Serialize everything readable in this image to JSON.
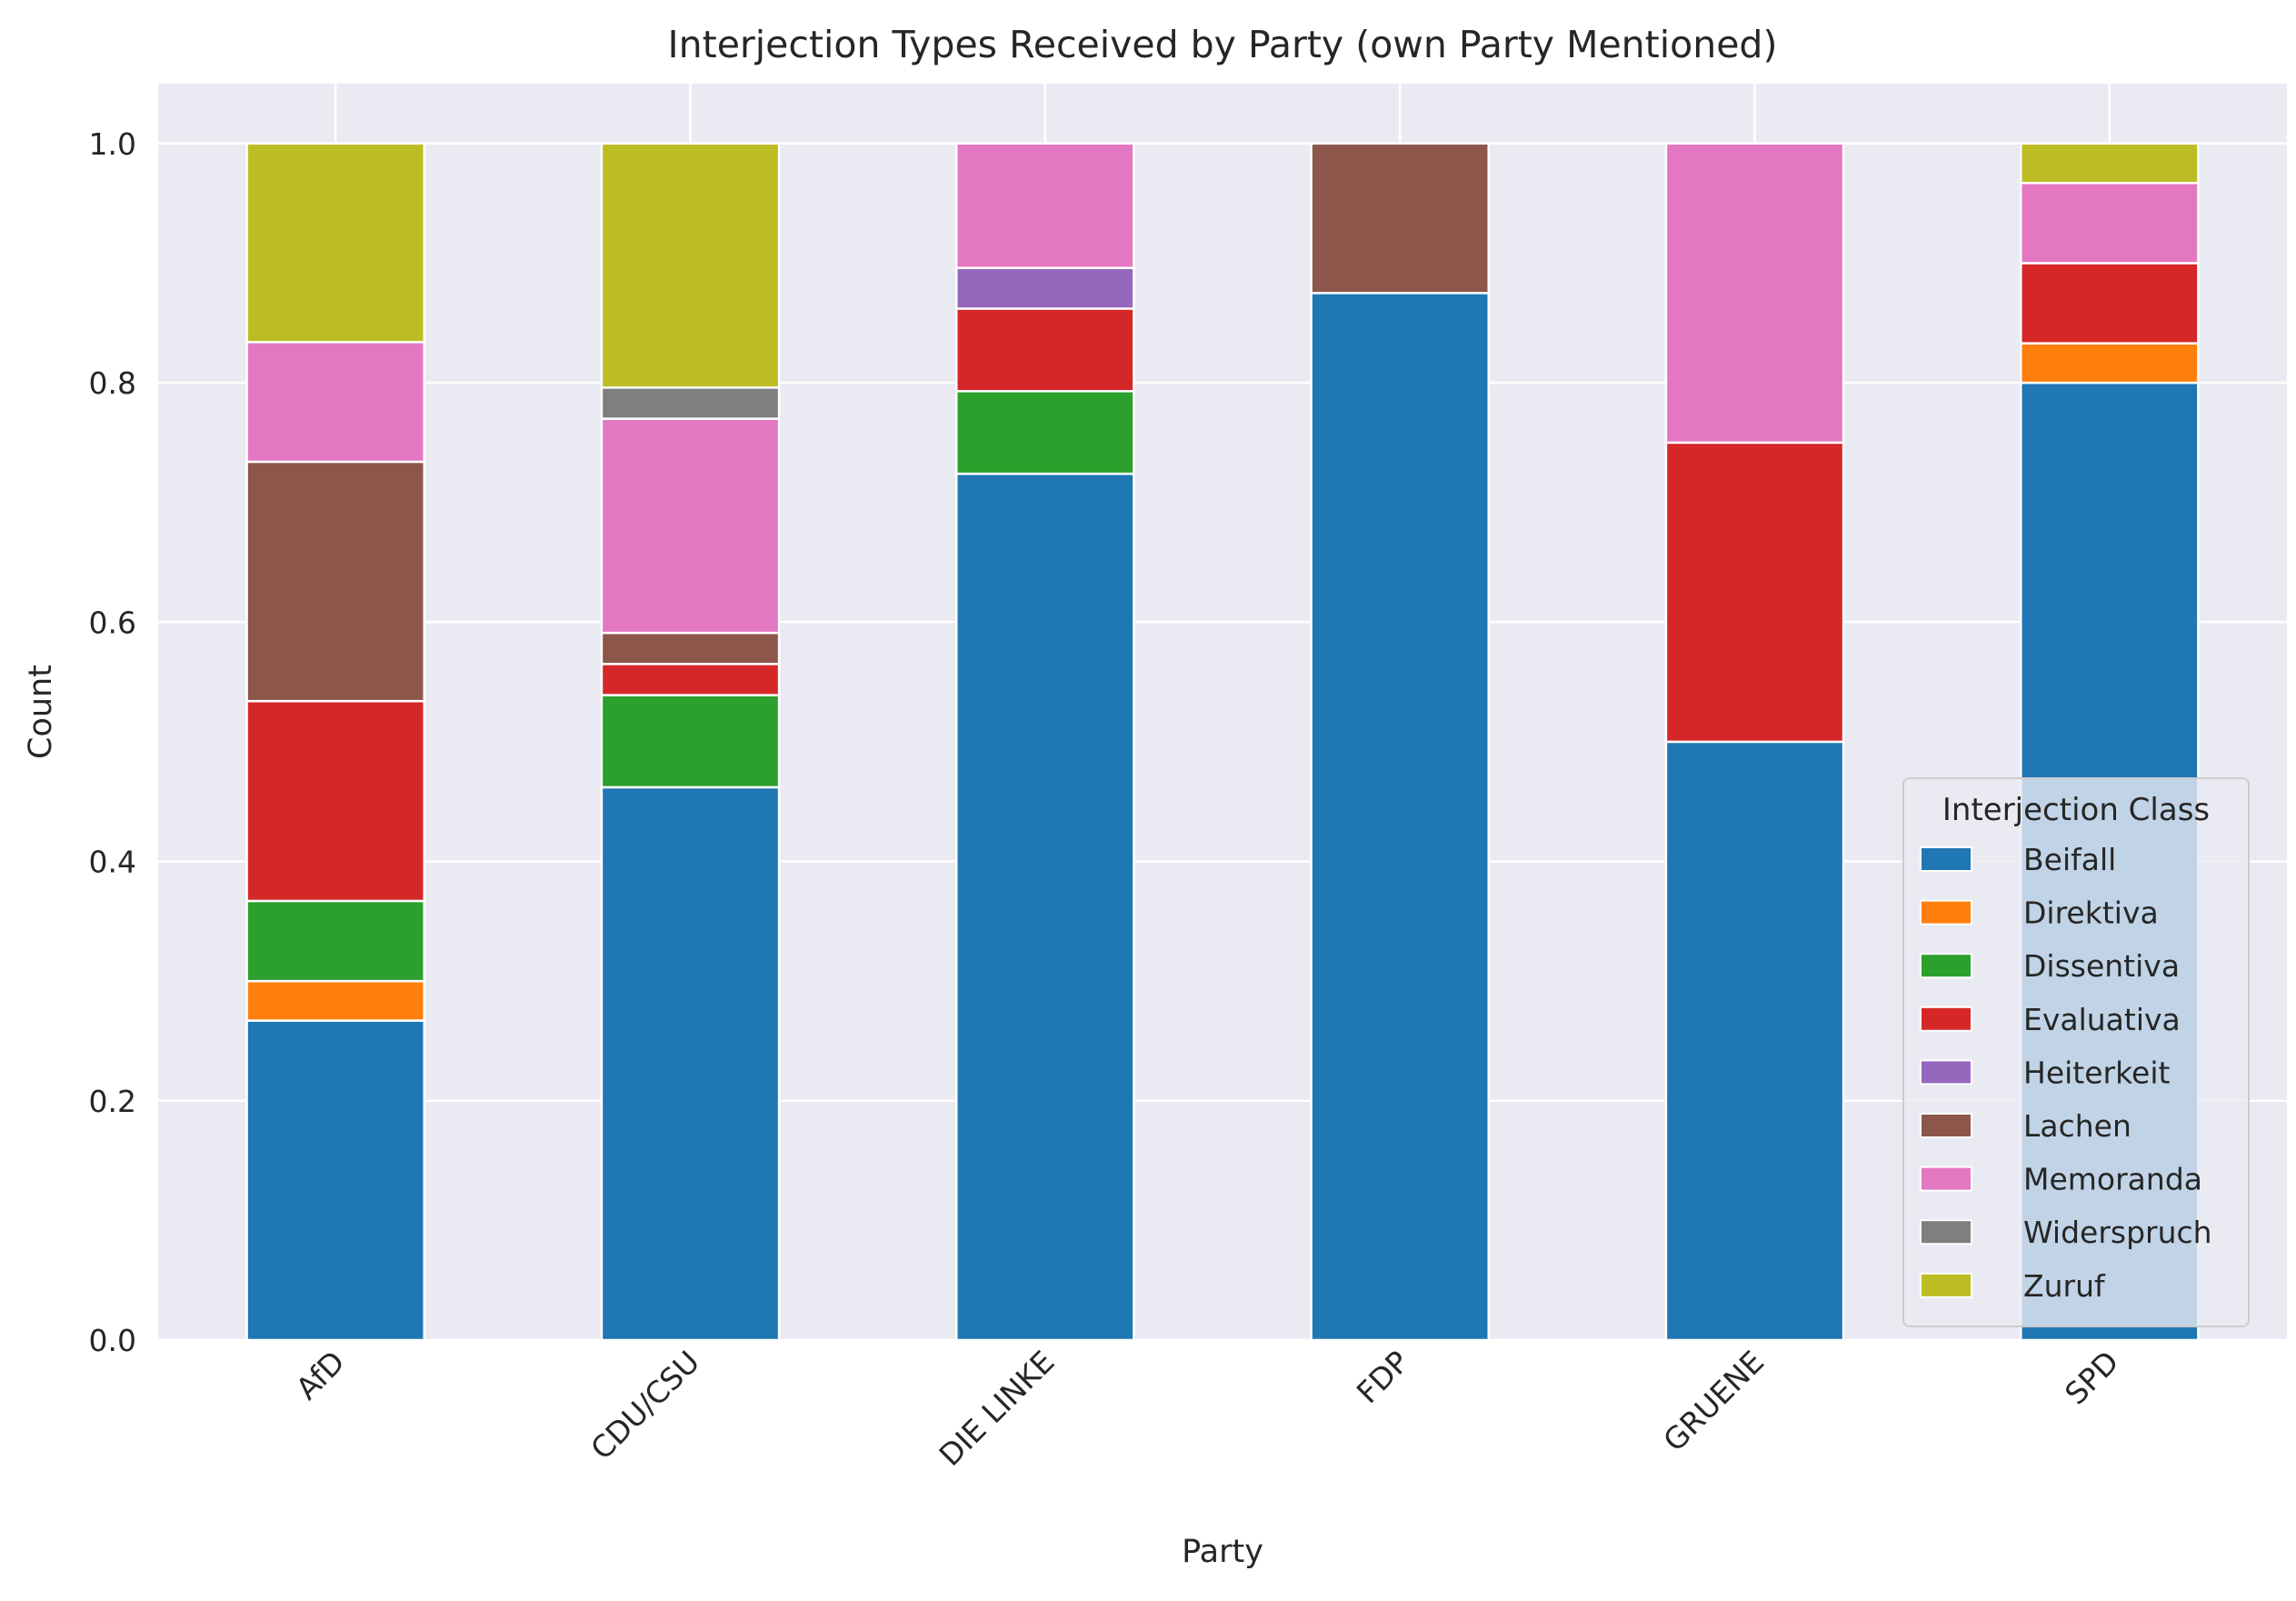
{
  "chart_data": {
    "type": "bar",
    "stacked": true,
    "title": "Interjection Types Received by Party (own Party Mentioned)",
    "xlabel": "Party",
    "ylabel": "Count",
    "ylim": [
      0,
      1.05
    ],
    "yticks": [
      "0.0",
      "0.2",
      "0.4",
      "0.6",
      "0.8",
      "1.0"
    ],
    "grid": true,
    "legend_title": "Interjection Class",
    "legend_position": "lower-right",
    "categories": [
      "AfD",
      "CDU/CSU",
      "DIE LINKE",
      "FDP",
      "GRUENE",
      "SPD"
    ],
    "series": [
      {
        "name": "Beifall",
        "color": "#1f77b4",
        "values": [
          0.267,
          0.462,
          0.724,
          0.875,
          0.5,
          0.8
        ]
      },
      {
        "name": "Direktiva",
        "color": "#ff7f0e",
        "values": [
          0.033,
          0,
          0,
          0,
          0,
          0.033
        ]
      },
      {
        "name": "Dissentiva",
        "color": "#2ca02c",
        "values": [
          0.067,
          0.077,
          0.069,
          0,
          0,
          0
        ]
      },
      {
        "name": "Evaluativa",
        "color": "#d62728",
        "values": [
          0.167,
          0.026,
          0.069,
          0,
          0.25,
          0.067
        ]
      },
      {
        "name": "Heiterkeit",
        "color": "#9467bd",
        "values": [
          0,
          0,
          0.034,
          0,
          0,
          0
        ]
      },
      {
        "name": "Lachen",
        "color": "#8c564b",
        "values": [
          0.2,
          0.026,
          0,
          0.125,
          0,
          0
        ]
      },
      {
        "name": "Memoranda",
        "color": "#e377c2",
        "values": [
          0.1,
          0.179,
          0.104,
          0,
          0.25,
          0.067
        ]
      },
      {
        "name": "Widerspruch",
        "color": "#7f7f7f",
        "values": [
          0,
          0.026,
          0,
          0,
          0,
          0
        ]
      },
      {
        "name": "Zuruf",
        "color": "#bcbd22",
        "values": [
          0.166,
          0.204,
          0,
          0,
          0,
          0.033
        ]
      }
    ]
  }
}
